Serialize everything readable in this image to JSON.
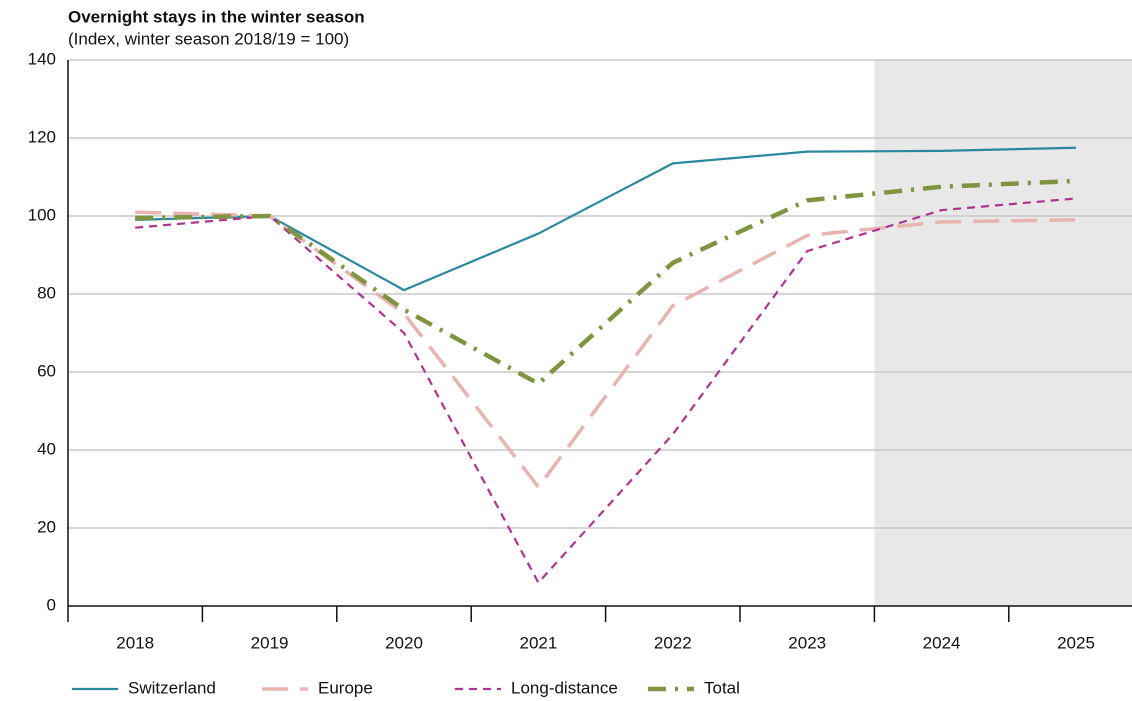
{
  "chart_data": {
    "type": "line",
    "title": "Overnight stays in the winter season",
    "subtitle": "(Index, winter season 2018/19 = 100)",
    "categories": [
      "2018",
      "2019",
      "2020",
      "2021",
      "2022",
      "2023",
      "2024",
      "2025"
    ],
    "series": [
      {
        "name": "Switzerland",
        "color": "#2a87a0",
        "dash": "solid",
        "values": [
          99,
          100,
          81,
          95.5,
          113.5,
          116.5,
          116.7,
          117.5
        ]
      },
      {
        "name": "Europe",
        "color": "#e8b4b0",
        "dash": "long",
        "values": [
          101,
          100,
          75,
          30.5,
          77,
          95,
          98.5,
          99
        ]
      },
      {
        "name": "Long-distance",
        "color": "#b0338f",
        "dash": "short",
        "values": [
          97,
          100,
          70,
          6,
          44,
          91,
          101.5,
          104.5
        ]
      },
      {
        "name": "Total",
        "color": "#7f9440",
        "dash": "dashdot",
        "values": [
          99.5,
          100,
          76,
          57,
          88,
          104,
          107.5,
          109
        ]
      }
    ],
    "ylim": [
      0,
      140
    ],
    "yticks": [
      0,
      20,
      40,
      60,
      80,
      100,
      120,
      140
    ],
    "grid": true,
    "shaded_from": 6,
    "legend": "bottom"
  }
}
